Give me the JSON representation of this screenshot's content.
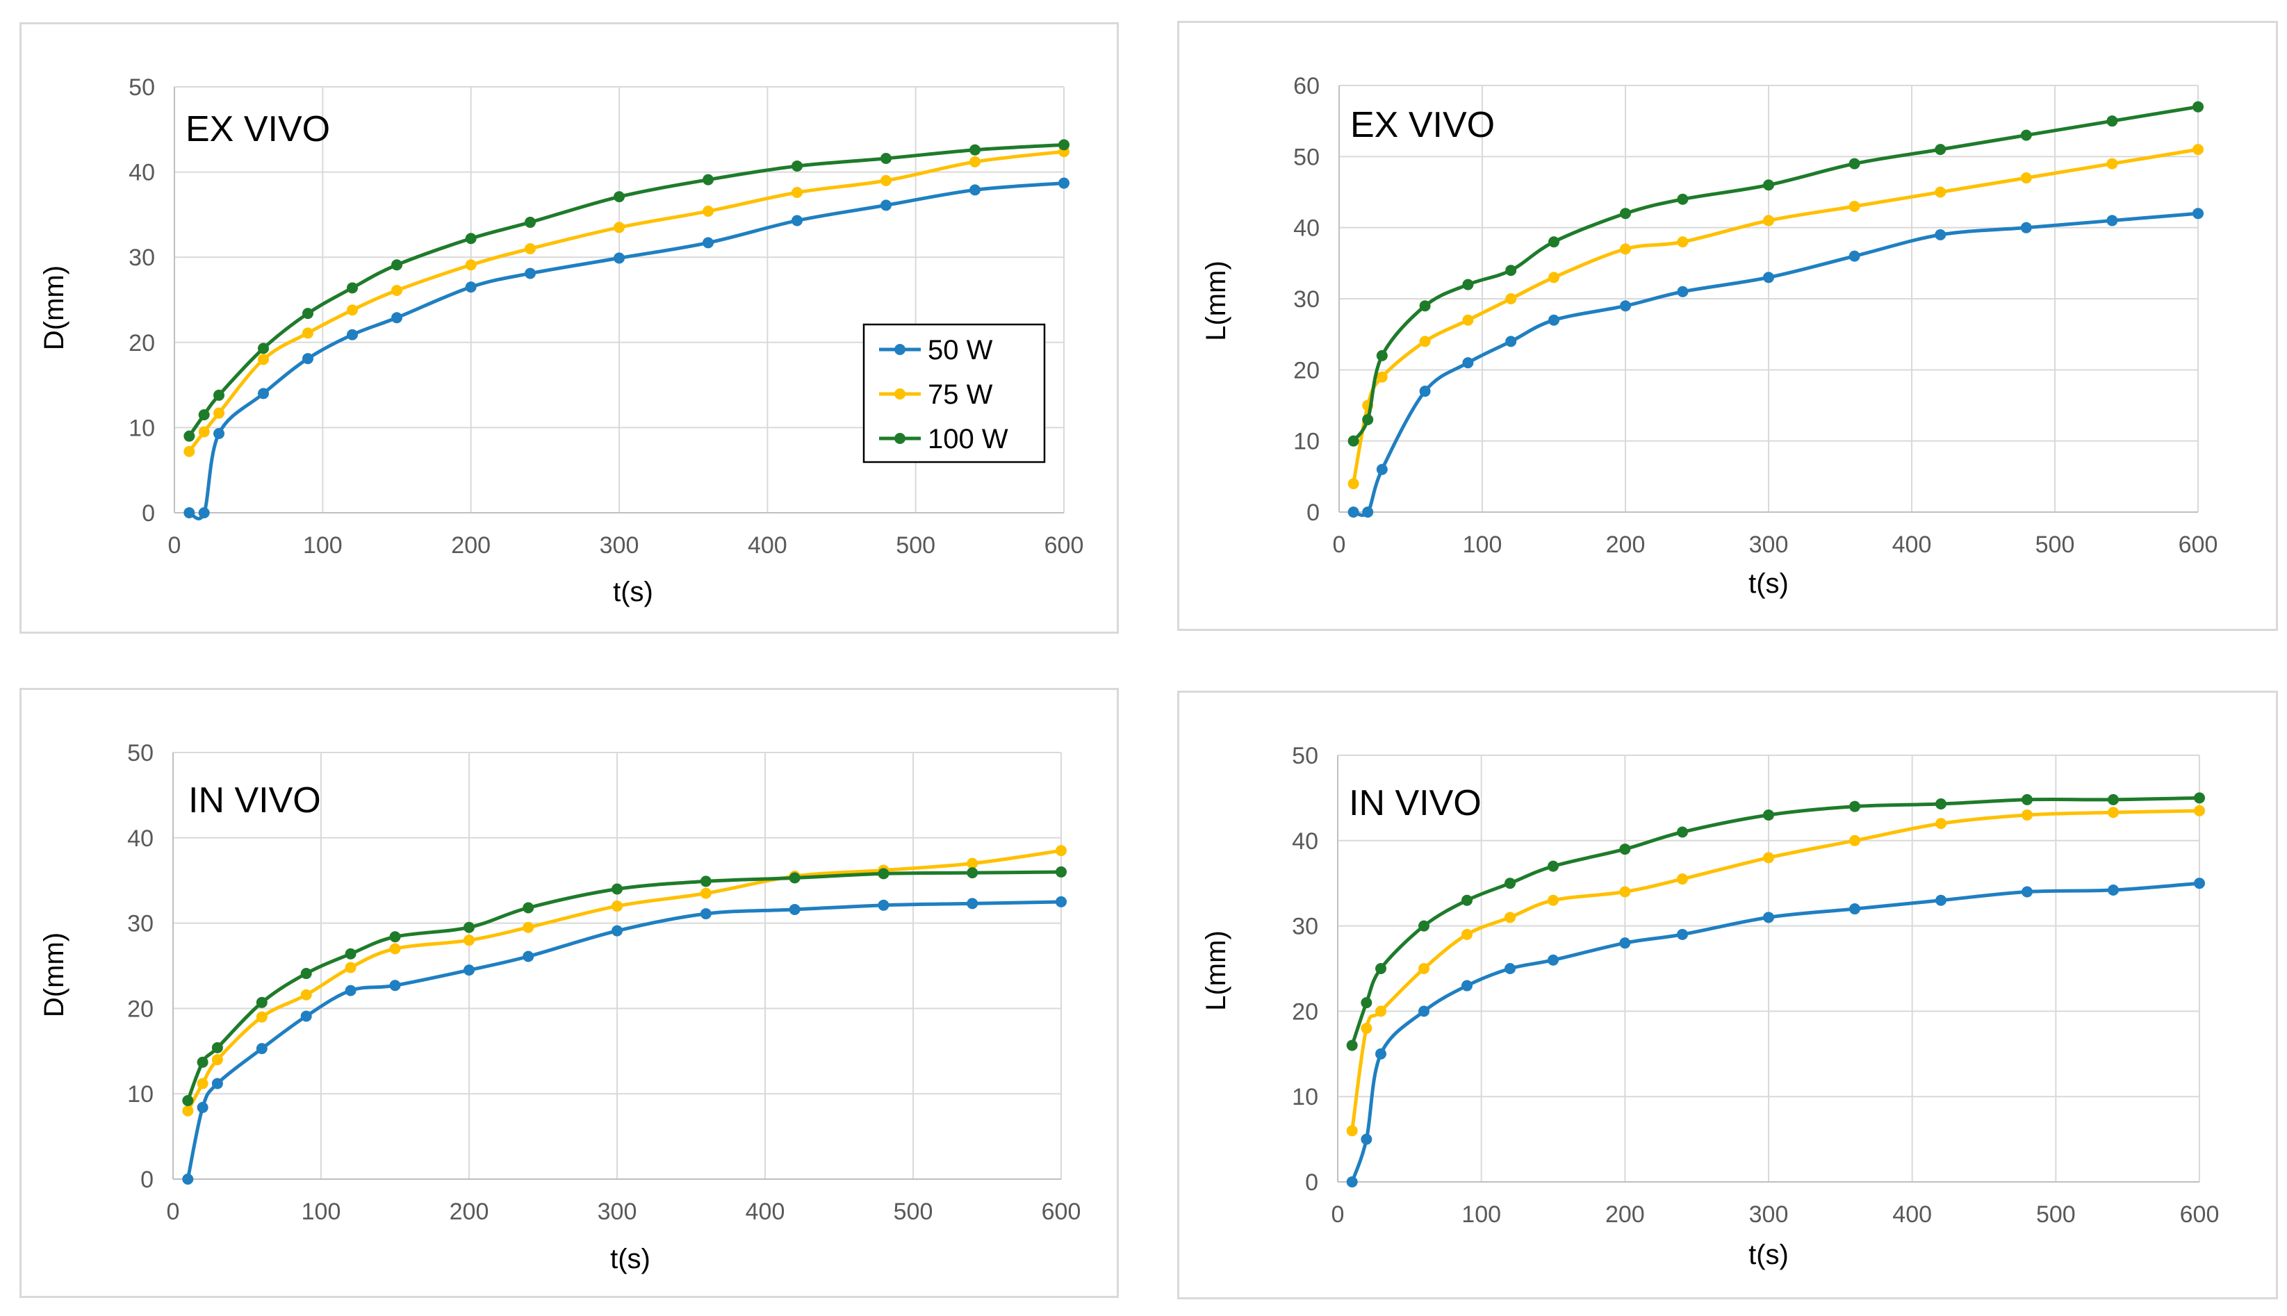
{
  "colors": {
    "50W": "#1f7fc1",
    "75W": "#ffc000",
    "100W": "#1e7b2a"
  },
  "legend": [
    {
      "label": "50 W",
      "color_key": "50W"
    },
    {
      "label": "75 W",
      "color_key": "75W"
    },
    {
      "label": "100 W",
      "color_key": "100W"
    }
  ],
  "chart_data": [
    {
      "type": "line",
      "title": "EX VIVO",
      "xlabel": "t(s)",
      "ylabel": "D(mm)",
      "xlim": [
        0,
        600
      ],
      "ylim": [
        0,
        50
      ],
      "xticks": [
        0,
        100,
        200,
        300,
        400,
        500,
        600
      ],
      "yticks": [
        0,
        10,
        20,
        30,
        40,
        50
      ],
      "x": [
        10,
        20,
        30,
        60,
        90,
        120,
        150,
        200,
        240,
        300,
        360,
        420,
        480,
        540,
        600
      ],
      "series": [
        {
          "name": "50 W",
          "color_key": "50W",
          "values": [
            0,
            0,
            9.3,
            14,
            18.1,
            20.9,
            22.9,
            26.5,
            28.1,
            29.9,
            31.7,
            34.3,
            36.1,
            37.9,
            38.7
          ]
        },
        {
          "name": "75 W",
          "color_key": "75W",
          "values": [
            7.2,
            9.5,
            11.7,
            18,
            21.1,
            23.8,
            26.1,
            29.1,
            31,
            33.5,
            35.4,
            37.6,
            39,
            41.2,
            42.4
          ]
        },
        {
          "name": "100 W",
          "color_key": "100W",
          "values": [
            9,
            11.5,
            13.8,
            19.3,
            23.4,
            26.4,
            29.1,
            32.2,
            34.1,
            37.1,
            39.1,
            40.7,
            41.6,
            42.6,
            43.2
          ]
        }
      ]
    },
    {
      "type": "line",
      "title": "EX VIVO",
      "xlabel": "t(s)",
      "ylabel": "L(mm)",
      "xlim": [
        0,
        600
      ],
      "ylim": [
        0,
        60
      ],
      "xticks": [
        0,
        100,
        200,
        300,
        400,
        500,
        600
      ],
      "yticks": [
        0,
        10,
        20,
        30,
        40,
        50,
        60
      ],
      "x": [
        10,
        20,
        30,
        60,
        90,
        120,
        150,
        200,
        240,
        300,
        360,
        420,
        480,
        540,
        600
      ],
      "series": [
        {
          "name": "50 W",
          "color_key": "50W",
          "values": [
            0,
            0,
            6,
            17,
            21,
            24,
            27,
            29,
            31,
            33,
            36,
            39,
            40,
            41,
            42
          ]
        },
        {
          "name": "75 W",
          "color_key": "75W",
          "values": [
            4,
            15,
            19,
            24,
            27,
            30,
            33,
            37,
            38,
            41,
            43,
            45,
            47,
            49,
            51
          ]
        },
        {
          "name": "100 W",
          "color_key": "100W",
          "values": [
            10,
            13,
            22,
            29,
            32,
            34,
            38,
            42,
            44,
            46,
            49,
            51,
            53,
            55,
            57
          ]
        }
      ]
    },
    {
      "type": "line",
      "title": "IN VIVO",
      "xlabel": "t(s)",
      "ylabel": "D(mm)",
      "xlim": [
        0,
        600
      ],
      "ylim": [
        0,
        50
      ],
      "xticks": [
        0,
        100,
        200,
        300,
        400,
        500,
        600
      ],
      "yticks": [
        0,
        10,
        20,
        30,
        40,
        50
      ],
      "x": [
        10,
        20,
        30,
        60,
        90,
        120,
        150,
        200,
        240,
        300,
        360,
        420,
        480,
        540,
        600
      ],
      "series": [
        {
          "name": "50 W",
          "color_key": "50W",
          "values": [
            0,
            8.4,
            11.2,
            15.3,
            19.1,
            22.1,
            22.7,
            24.5,
            26.1,
            29.1,
            31.1,
            31.6,
            32.1,
            32.3,
            32.5
          ]
        },
        {
          "name": "75 W",
          "color_key": "75W",
          "values": [
            8,
            11.2,
            14,
            19,
            21.6,
            24.8,
            27,
            28,
            29.5,
            32,
            33.5,
            35.5,
            36.2,
            37,
            38.5
          ]
        },
        {
          "name": "100 W",
          "color_key": "100W",
          "values": [
            9.2,
            13.7,
            15.4,
            20.7,
            24.1,
            26.4,
            28.4,
            29.5,
            31.8,
            34,
            34.9,
            35.3,
            35.8,
            35.9,
            36
          ]
        }
      ]
    },
    {
      "type": "line",
      "title": "IN VIVO",
      "xlabel": "t(s)",
      "ylabel": "L(mm)",
      "xlim": [
        0,
        600
      ],
      "ylim": [
        0,
        50
      ],
      "xticks": [
        0,
        100,
        200,
        300,
        400,
        500,
        600
      ],
      "yticks": [
        0,
        10,
        20,
        30,
        40,
        50
      ],
      "x": [
        10,
        20,
        30,
        60,
        90,
        120,
        150,
        200,
        240,
        300,
        360,
        420,
        480,
        540,
        600
      ],
      "series": [
        {
          "name": "50 W",
          "color_key": "50W",
          "values": [
            0,
            5,
            15,
            20,
            23,
            25,
            26,
            28,
            29,
            31,
            32,
            33,
            34,
            34.2,
            35
          ]
        },
        {
          "name": "75 W",
          "color_key": "75W",
          "values": [
            6,
            18,
            20,
            25,
            29,
            31,
            33,
            34,
            35.5,
            38,
            40,
            42,
            43,
            43.3,
            43.5
          ]
        },
        {
          "name": "100 W",
          "color_key": "100W",
          "values": [
            16,
            21,
            25,
            30,
            33,
            35,
            37,
            39,
            41,
            43,
            44,
            44.3,
            44.8,
            44.8,
            45
          ]
        }
      ]
    }
  ]
}
